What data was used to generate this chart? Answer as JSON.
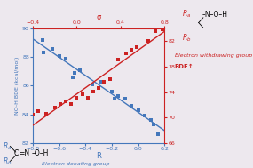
{
  "blue_x": [
    -0.728,
    -0.72,
    -0.65,
    -0.6,
    -0.55,
    -0.5,
    -0.48,
    -0.44,
    -0.35,
    -0.28,
    -0.2,
    -0.18,
    -0.15,
    -0.1,
    -0.05,
    0.0,
    0.05,
    0.1,
    0.12,
    0.15
  ],
  "blue_y": [
    89.2,
    88.3,
    88.6,
    88.1,
    87.9,
    86.6,
    86.9,
    87.1,
    86.1,
    86.3,
    85.6,
    85.1,
    85.3,
    85.1,
    84.6,
    84.3,
    83.9,
    83.6,
    83.3,
    82.6
  ],
  "red_x": [
    -0.4,
    -0.35,
    -0.28,
    -0.2,
    -0.15,
    -0.1,
    -0.05,
    0.0,
    0.05,
    0.1,
    0.15,
    0.2,
    0.25,
    0.3,
    0.38,
    0.45,
    0.5,
    0.55,
    0.65,
    0.72,
    0.78
  ],
  "red_y": [
    70.5,
    71.0,
    70.6,
    71.6,
    72.1,
    72.6,
    72.1,
    73.1,
    73.6,
    73.1,
    74.1,
    74.6,
    75.6,
    76.1,
    79.1,
    80.1,
    80.6,
    81.1,
    82.1,
    83.6,
    83.9
  ],
  "blue_xlim": [
    -0.8,
    0.2
  ],
  "blue_ylim": [
    82,
    90
  ],
  "red_xlim": [
    -0.4,
    0.8
  ],
  "red_ylim": [
    66,
    84
  ],
  "blue_color": "#4477BB",
  "red_color": "#CC2222",
  "blue_xlabel": "R",
  "red_xlabel": "σ",
  "blue_ylabel": "NO-H BDE (kcal/mol)",
  "blue_xticks": [
    -0.8,
    -0.6,
    -0.4,
    -0.2,
    0.0,
    0.2
  ],
  "blue_yticks": [
    82,
    84,
    86,
    88,
    90
  ],
  "red_xticks": [
    -0.4,
    0.0,
    0.4,
    0.8
  ],
  "red_yticks": [
    66,
    70,
    74,
    78,
    82
  ],
  "background_color": "#EDE8EE",
  "fig_width": 2.85,
  "fig_height": 1.89
}
